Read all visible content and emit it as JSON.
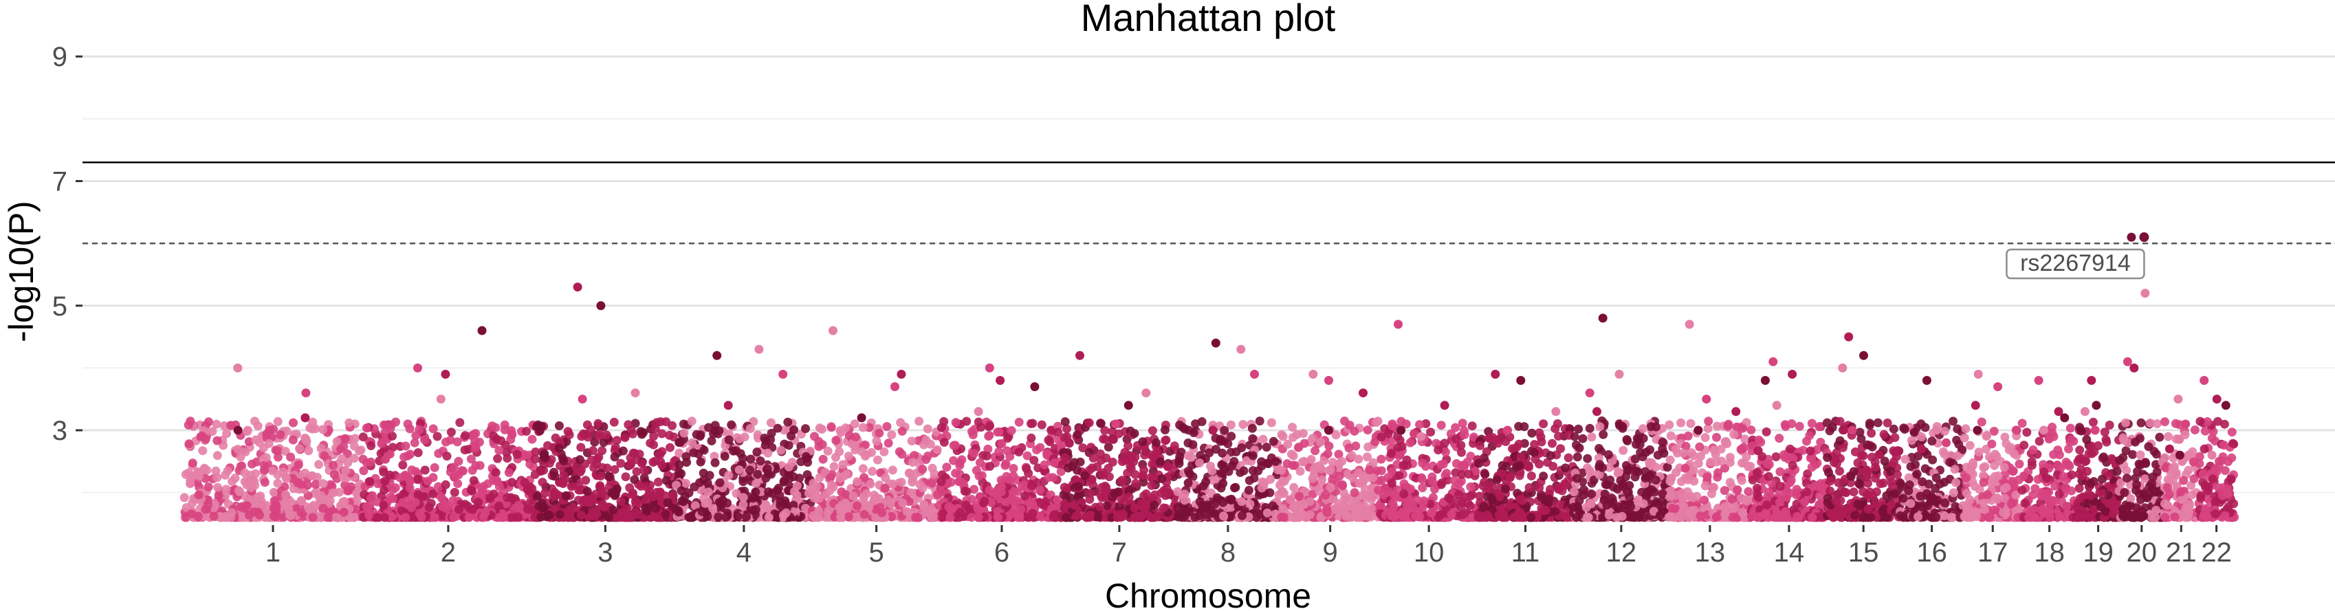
{
  "chart_data": {
    "type": "scatter",
    "title": "Manhattan plot",
    "xlabel": "Chromosome",
    "ylabel": "-log10(P)",
    "ylim": [
      1.5,
      9.3
    ],
    "y_ticks": [
      3,
      5,
      7,
      9
    ],
    "grid": "horizontal",
    "genome_wide_threshold": 7.3,
    "suggestive_threshold": 6,
    "colors": [
      "#e47fa6",
      "#d7437f",
      "#b01c55",
      "#7a0f36"
    ],
    "chromosomes": [
      {
        "chr": "1",
        "label": "1",
        "start": 0,
        "length": 249,
        "peaks": [
          4.0,
          3.6,
          3.2,
          3.0
        ]
      },
      {
        "chr": "2",
        "label": "2",
        "start": 249,
        "length": 243,
        "peaks": [
          4.0,
          3.9,
          4.6,
          3.5
        ]
      },
      {
        "chr": "3",
        "label": "3",
        "start": 492,
        "length": 198,
        "peaks": [
          5.3,
          5.0,
          3.6,
          3.5
        ]
      },
      {
        "chr": "4",
        "label": "4",
        "start": 690,
        "length": 191,
        "peaks": [
          4.2,
          4.3,
          3.9,
          3.4
        ]
      },
      {
        "chr": "5",
        "label": "5",
        "start": 881,
        "length": 181,
        "peaks": [
          4.6,
          3.7,
          3.9,
          3.2
        ]
      },
      {
        "chr": "6",
        "label": "6",
        "start": 1062,
        "length": 171,
        "peaks": [
          4.0,
          3.8,
          3.7,
          3.3
        ]
      },
      {
        "chr": "7",
        "label": "7",
        "start": 1233,
        "length": 159,
        "peaks": [
          4.2,
          3.4,
          3.6,
          3.1
        ]
      },
      {
        "chr": "8",
        "label": "8",
        "start": 1392,
        "length": 146,
        "peaks": [
          4.4,
          4.3,
          3.9,
          3.0
        ]
      },
      {
        "chr": "9",
        "label": "9",
        "start": 1538,
        "length": 141,
        "peaks": [
          3.9,
          3.8,
          3.6,
          3.0
        ]
      },
      {
        "chr": "10",
        "label": "10",
        "start": 1679,
        "length": 136,
        "peaks": [
          4.7,
          3.4,
          3.0,
          2.9
        ]
      },
      {
        "chr": "11",
        "label": "11",
        "start": 1815,
        "length": 135,
        "peaks": [
          3.9,
          3.8,
          3.3,
          3.0
        ]
      },
      {
        "chr": "12",
        "label": "12",
        "start": 1950,
        "length": 134,
        "peaks": [
          4.8,
          3.9,
          3.6,
          3.3
        ]
      },
      {
        "chr": "13",
        "label": "13",
        "start": 2084,
        "length": 115,
        "peaks": [
          4.7,
          3.5,
          3.3,
          3.0
        ]
      },
      {
        "chr": "14",
        "label": "14",
        "start": 2199,
        "length": 107,
        "peaks": [
          4.1,
          3.9,
          3.8,
          3.4
        ]
      },
      {
        "chr": "15",
        "label": "15",
        "start": 2306,
        "length": 102,
        "peaks": [
          4.5,
          4.2,
          4.0,
          3.0
        ]
      },
      {
        "chr": "16",
        "label": "16",
        "start": 2408,
        "length": 90,
        "peaks": [
          3.8,
          3.0,
          2.8,
          2.7
        ]
      },
      {
        "chr": "17",
        "label": "17",
        "start": 2498,
        "length": 81,
        "peaks": [
          3.9,
          3.7,
          3.4,
          3.0
        ]
      },
      {
        "chr": "18",
        "label": "18",
        "start": 2579,
        "length": 78,
        "peaks": [
          3.8,
          3.3,
          3.2,
          3.0
        ]
      },
      {
        "chr": "19",
        "label": "19",
        "start": 2657,
        "length": 59,
        "peaks": [
          3.8,
          3.4,
          3.3,
          3.0
        ]
      },
      {
        "chr": "20",
        "label": "20",
        "start": 2716,
        "length": 63,
        "peaks": [
          6.1,
          5.2,
          4.1,
          4.0
        ]
      },
      {
        "chr": "21",
        "label": "21",
        "start": 2779,
        "length": 48,
        "peaks": [
          3.5,
          3.1,
          2.7,
          2.6
        ]
      },
      {
        "chr": "22",
        "label": "22",
        "start": 2827,
        "length": 51,
        "peaks": [
          3.8,
          3.5,
          3.4,
          2.6
        ]
      }
    ],
    "annotations": [
      {
        "label": "rs2267914",
        "chr": "20",
        "pos": 2751,
        "y": 6.1
      }
    ]
  }
}
